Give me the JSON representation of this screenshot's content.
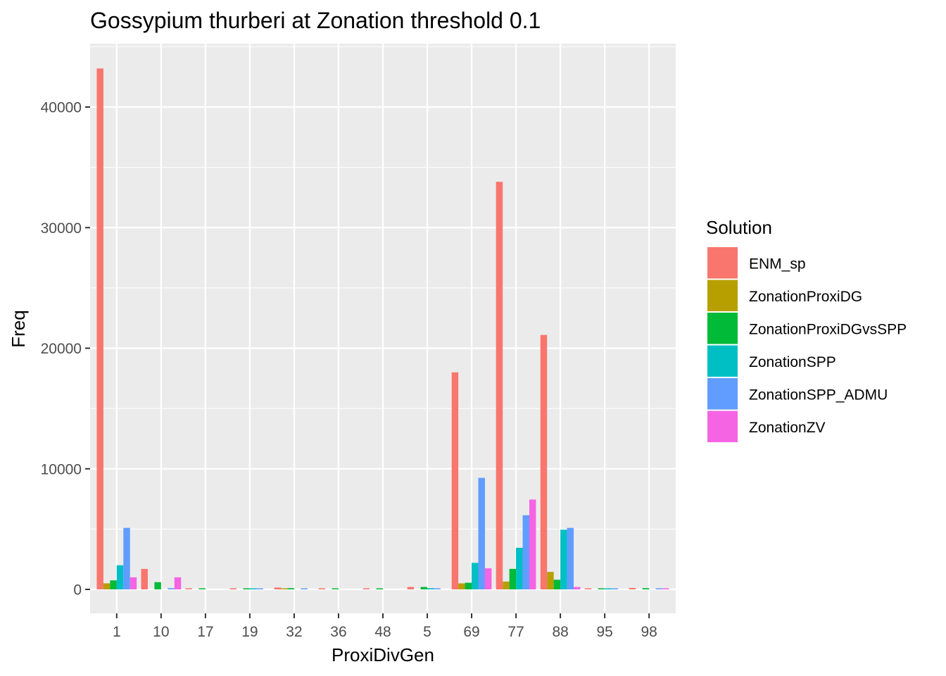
{
  "chart_data": {
    "type": "bar",
    "title": "Gossypium thurberi at Zonation threshold 0.1",
    "xlabel": "ProxiDivGen",
    "ylabel": "Freq",
    "ylim": [
      -2000,
      45200
    ],
    "yticks": [
      0,
      10000,
      20000,
      30000,
      40000
    ],
    "ytick_labels": [
      "0",
      "10000",
      "20000",
      "30000",
      "40000"
    ],
    "grid": true,
    "legend_title": "Solution",
    "legend_position": "right",
    "categories": [
      "1",
      "10",
      "17",
      "19",
      "32",
      "36",
      "48",
      "5",
      "69",
      "77",
      "88",
      "95",
      "98"
    ],
    "series": [
      {
        "name": "ENM_sp",
        "color": "#F8766D",
        "values": [
          43200,
          1700,
          60,
          60,
          150,
          60,
          20,
          200,
          18000,
          33800,
          21100,
          40,
          120
        ]
      },
      {
        "name": "ZonationProxiDG",
        "color": "#B79F00",
        "values": [
          500,
          0,
          0,
          0,
          50,
          0,
          0,
          0,
          500,
          650,
          1450,
          0,
          0
        ]
      },
      {
        "name": "ZonationProxiDGvsSPP",
        "color": "#00BA38",
        "values": [
          750,
          600,
          60,
          60,
          100,
          60,
          20,
          200,
          550,
          1700,
          800,
          30,
          100
        ]
      },
      {
        "name": "ZonationSPP",
        "color": "#00BFC4",
        "values": [
          2000,
          0,
          0,
          60,
          0,
          0,
          0,
          100,
          2200,
          3450,
          4950,
          30,
          0
        ]
      },
      {
        "name": "ZonationSPP_ADMU",
        "color": "#619CFF",
        "values": [
          5100,
          100,
          0,
          60,
          60,
          0,
          0,
          60,
          9250,
          6150,
          5100,
          30,
          60
        ]
      },
      {
        "name": "ZonationZV",
        "color": "#F564E3",
        "values": [
          1000,
          1000,
          0,
          0,
          0,
          0,
          0,
          0,
          1750,
          7450,
          200,
          0,
          80
        ]
      }
    ]
  }
}
